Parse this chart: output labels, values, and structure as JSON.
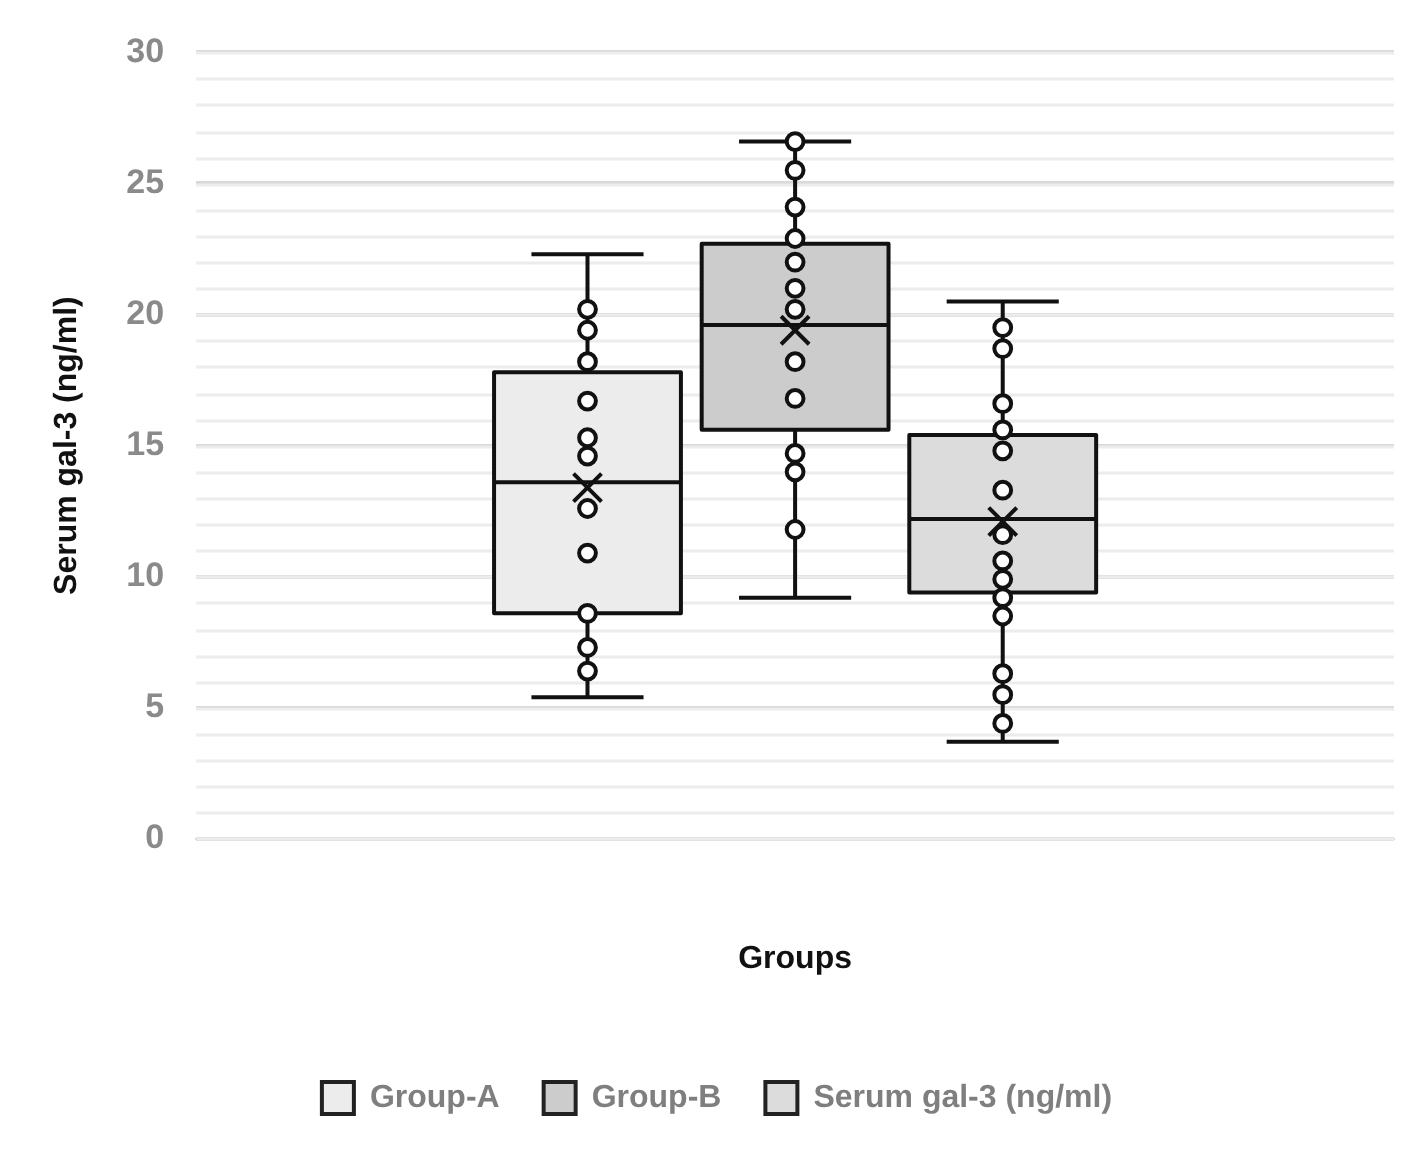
{
  "chart_data": {
    "type": "box",
    "xlabel": "Groups",
    "ylabel": "Serum gal-3 (ng/ml)",
    "categories": [
      null
    ],
    "series": [
      {
        "name": "Group-A",
        "color": "#ececec",
        "boxes": [
          {
            "low": 5.4,
            "q1": 8.6,
            "median": 13.6,
            "q3": 17.8,
            "high": 22.3,
            "mean": 13.4,
            "outliers": [
              20.2,
              19.4,
              18.2,
              16.7,
              15.3,
              14.6,
              12.6,
              10.9,
              8.6,
              7.3,
              6.4
            ]
          }
        ]
      },
      {
        "name": "Group-B",
        "color": "#cccccc",
        "boxes": [
          {
            "low": 9.2,
            "q1": 15.6,
            "median": 19.6,
            "q3": 22.7,
            "high": 26.6,
            "mean": 19.4,
            "outliers": [
              26.6,
              25.5,
              24.1,
              22.9,
              22.0,
              21.0,
              20.2,
              18.2,
              16.8,
              14.7,
              14.0,
              11.8
            ]
          }
        ]
      },
      {
        "name": "Serum gal-3 (ng/ml)",
        "color": "#dcdcdc",
        "boxes": [
          {
            "low": 3.7,
            "q1": 9.4,
            "median": 12.2,
            "q3": 15.4,
            "high": 20.5,
            "mean": 12.1,
            "outliers": [
              19.5,
              18.7,
              16.6,
              15.6,
              14.8,
              13.3,
              11.6,
              10.6,
              9.9,
              9.2,
              8.5,
              6.3,
              5.5,
              4.4
            ]
          }
        ]
      }
    ],
    "ylim": [
      0,
      30
    ],
    "yticks": [
      0,
      5,
      10,
      15,
      20,
      25,
      30
    ],
    "grid": "y",
    "legend": "bottom",
    "marker": "circle"
  }
}
